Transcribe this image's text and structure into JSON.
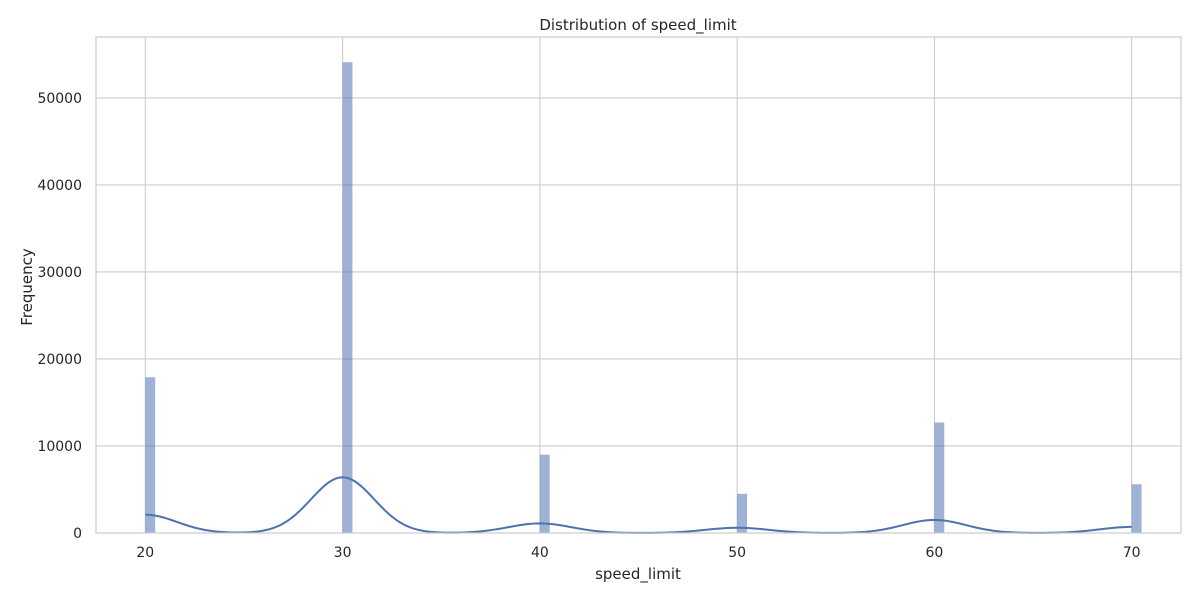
{
  "chart_data": {
    "type": "bar",
    "title": "Distribution of speed_limit",
    "xlabel": "speed_limit",
    "ylabel": "Frequency",
    "xlim": [
      17.5,
      72.5
    ],
    "ylim": [
      0,
      57000
    ],
    "x_ticks": [
      20,
      30,
      40,
      50,
      60,
      70
    ],
    "y_ticks": [
      0,
      10000,
      20000,
      30000,
      40000,
      50000
    ],
    "grid": true,
    "bin_width": 0.5,
    "histogram": [
      {
        "x": 20,
        "value": 17900
      },
      {
        "x": 30,
        "value": 54100
      },
      {
        "x": 40,
        "value": 9000
      },
      {
        "x": 50,
        "value": 4500
      },
      {
        "x": 60,
        "value": 12700
      },
      {
        "x": 70,
        "value": 5600
      }
    ],
    "kde_peaks": [
      {
        "x": 20,
        "value": 2100
      },
      {
        "x": 30,
        "value": 6400
      },
      {
        "x": 40,
        "value": 1100
      },
      {
        "x": 50,
        "value": 600
      },
      {
        "x": 60,
        "value": 1500
      },
      {
        "x": 70,
        "value": 700
      }
    ],
    "kde_bandwidth": 1.6,
    "colors": {
      "bars": "#4c72b0",
      "kde": "#4c72b0",
      "grid": "#cccccc"
    }
  }
}
